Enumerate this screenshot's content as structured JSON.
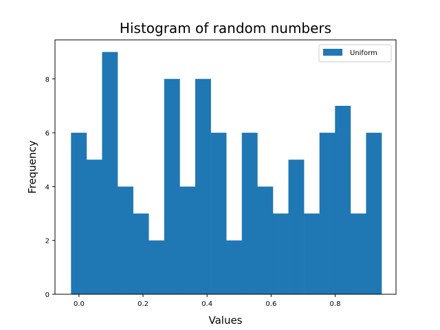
{
  "chart_data": {
    "type": "bar",
    "title": "Histogram of random numbers",
    "xlabel": "Values",
    "ylabel": "Frequency",
    "xlim": [
      -0.075,
      0.99
    ],
    "ylim": [
      0,
      9.45
    ],
    "xticks": [
      0.0,
      0.2,
      0.4,
      0.6,
      0.8
    ],
    "xtick_labels": [
      "0.0",
      "0.2",
      "0.4",
      "0.6",
      "0.8"
    ],
    "yticks": [
      0,
      2,
      4,
      6,
      8
    ],
    "ytick_labels": [
      "0",
      "2",
      "4",
      "6",
      "8"
    ],
    "bin_edges": [
      -0.025,
      0.0235,
      0.072,
      0.1205,
      0.169,
      0.2175,
      0.266,
      0.3145,
      0.363,
      0.4115,
      0.46,
      0.5085,
      0.557,
      0.6055,
      0.654,
      0.7025,
      0.751,
      0.7995,
      0.848,
      0.8965,
      0.945
    ],
    "values": [
      6,
      5,
      9,
      4,
      3,
      2,
      8,
      4,
      8,
      6,
      2,
      6,
      4,
      3,
      5,
      3,
      6,
      7,
      3,
      6
    ],
    "series": [
      {
        "name": "Uniform",
        "color": "#1f77b4"
      }
    ],
    "legend": {
      "position": "top-right"
    },
    "grid": false
  }
}
